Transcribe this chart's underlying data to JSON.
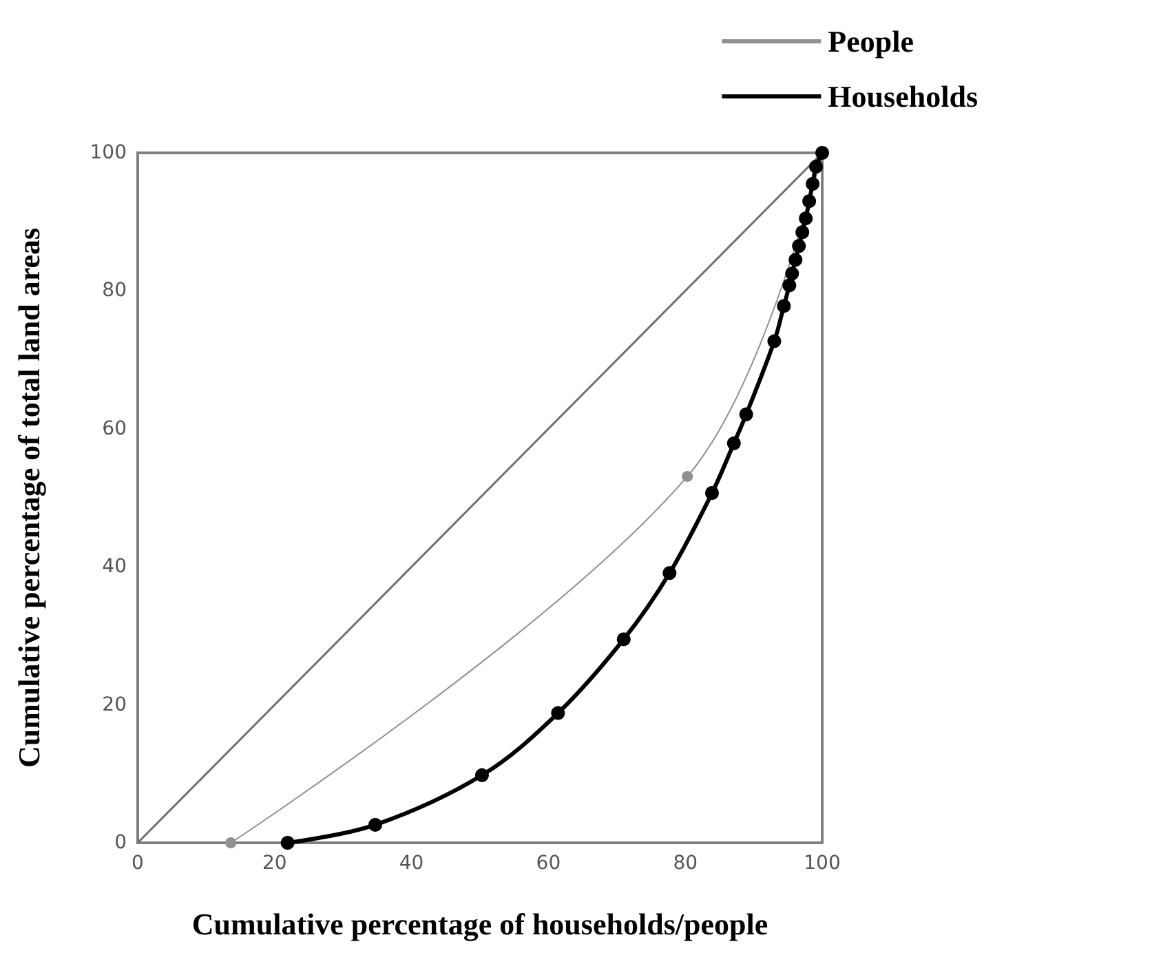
{
  "chart_data": {
    "type": "line",
    "xlabel": "Cumulative percentage of households/people",
    "ylabel": "Cumulative percentage of total land areas",
    "xlim": [
      0,
      100
    ],
    "ylim": [
      0,
      100
    ],
    "xticks": [
      0,
      20,
      40,
      60,
      80,
      100
    ],
    "yticks": [
      0,
      20,
      40,
      60,
      80,
      100
    ],
    "grid": false,
    "legend": "top right",
    "line_style": "solid",
    "series": [
      {
        "color": "#707070",
        "marker": "none",
        "x": [
          0,
          100
        ],
        "values": [
          0,
          100
        ]
      },
      {
        "name": "People",
        "color": "#909090",
        "marker": "circle",
        "x": [
          13.6,
          80.3,
          100
        ],
        "values": [
          0,
          53.1,
          100
        ]
      },
      {
        "name": "Households",
        "color": "#000000",
        "marker": "circle",
        "x": [
          21.9,
          34.7,
          50.3,
          61.4,
          71.0,
          77.7,
          83.9,
          87.1,
          88.9,
          93.0,
          94.4,
          95.2,
          95.6,
          96.1,
          96.6,
          97.1,
          97.6,
          98.1,
          98.6,
          99.1,
          100
        ],
        "values": [
          0,
          2.6,
          9.8,
          18.8,
          29.5,
          39.1,
          50.7,
          57.9,
          62.1,
          72.7,
          77.8,
          80.8,
          82.5,
          84.5,
          86.5,
          88.5,
          90.5,
          93,
          95.5,
          98,
          100
        ]
      }
    ]
  }
}
